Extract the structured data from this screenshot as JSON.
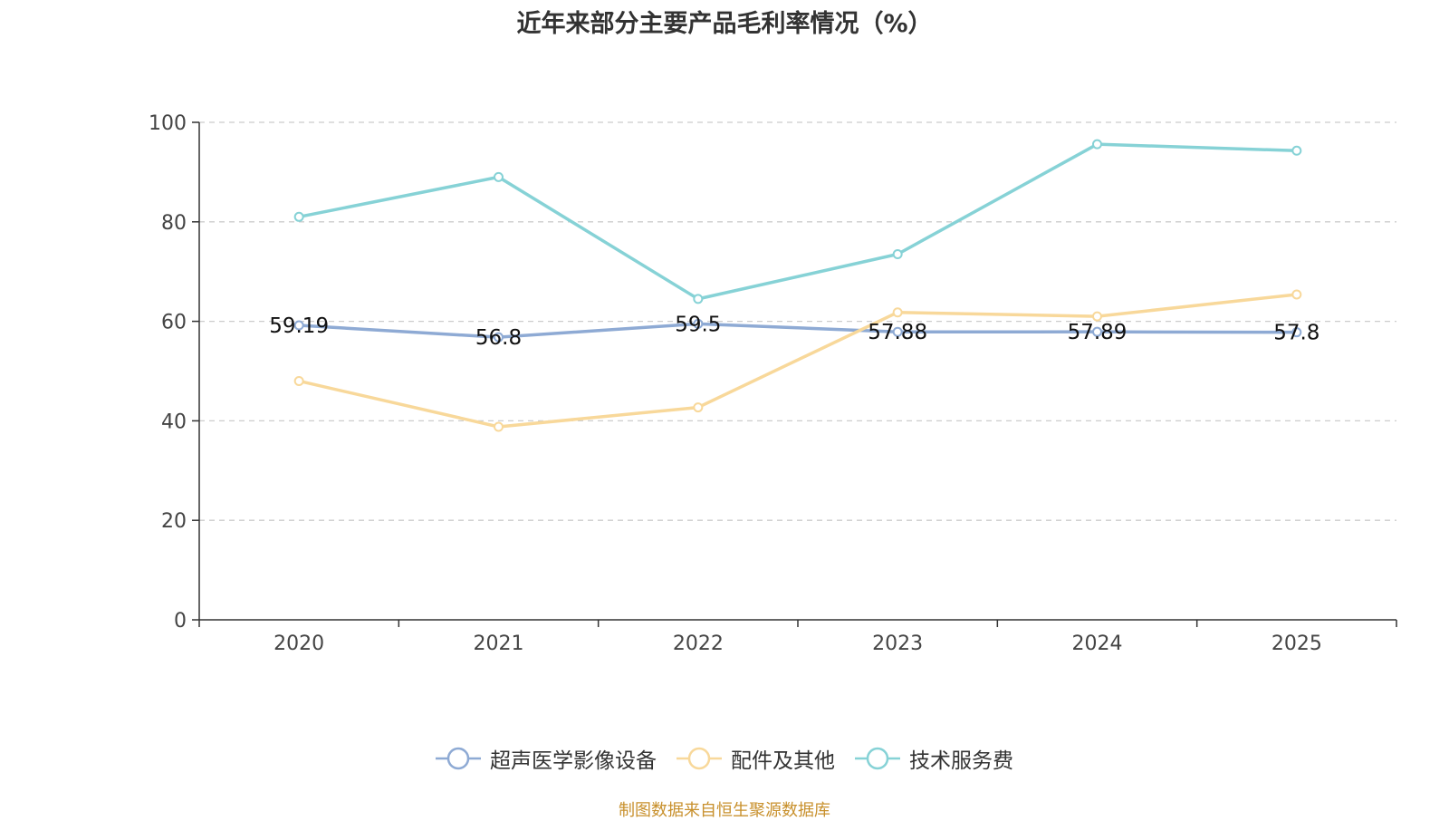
{
  "chart_data": {
    "type": "line",
    "title": "近年来部分主要产品毛利率情况（%）",
    "xlabel": "",
    "ylabel": "",
    "categories": [
      "2020",
      "2021",
      "2022",
      "2023",
      "2024",
      "2025"
    ],
    "ylim": [
      0,
      100
    ],
    "yticks": [
      0,
      20,
      40,
      60,
      80,
      100
    ],
    "grid": true,
    "legend_position": "bottom-center",
    "series": [
      {
        "name": "超声医学影像设备",
        "color": "#8eaad4",
        "values": [
          59.19,
          56.8,
          59.5,
          57.88,
          57.89,
          57.8
        ],
        "data_labels": [
          "59.19",
          "56.8",
          "59.5",
          "57.88",
          "57.89",
          "57.8"
        ]
      },
      {
        "name": "配件及其他",
        "color": "#f8d89a",
        "values": [
          48.0,
          38.8,
          42.7,
          61.8,
          61.0,
          65.4
        ],
        "data_labels": []
      },
      {
        "name": "技术服务费",
        "color": "#86d2d6",
        "values": [
          81.0,
          89.0,
          64.5,
          73.5,
          95.6,
          94.3
        ],
        "data_labels": []
      }
    ]
  },
  "footer": {
    "source": "制图数据来自恒生聚源数据库"
  }
}
